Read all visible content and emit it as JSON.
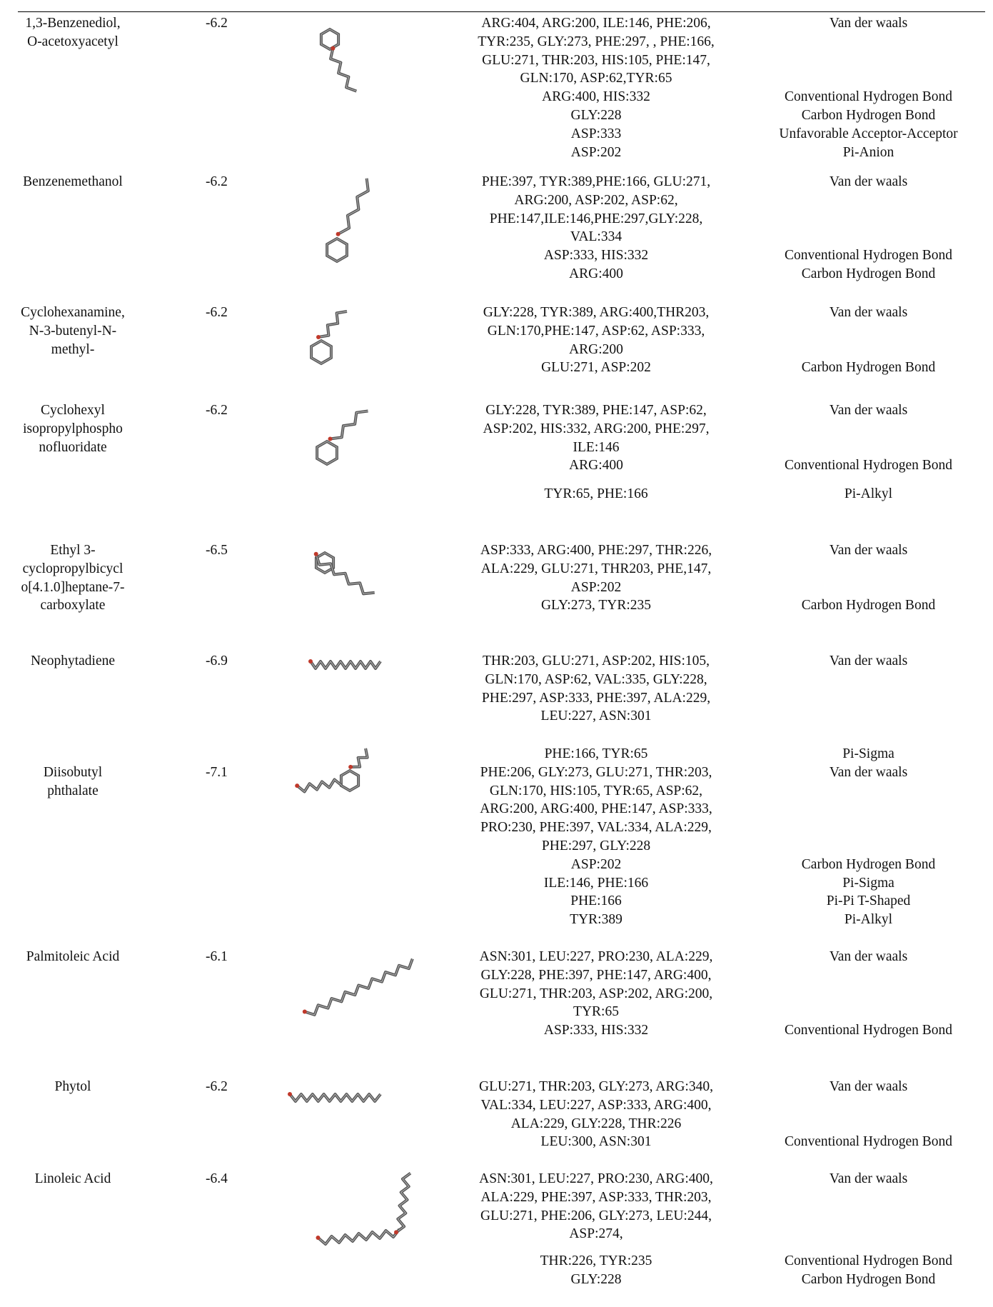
{
  "table": {
    "rows": [
      {
        "compound": [
          "1,3-Benzenediol,",
          "O-acetoxyacetyl"
        ],
        "energy": -6.2,
        "groups": [
          {
            "residues": [
              "ARG:404, ARG:200, ILE:146, PHE:206,",
              "TYR:235, GLY:273, PHE:297, , PHE:166,",
              "GLU:271, THR:203, HIS:105, PHE:147,",
              "GLN:170, ASP:62,TYR:65"
            ],
            "types": [
              "Van der waals"
            ]
          },
          {
            "residues": [
              "ARG:400, HIS:332",
              "GLY:228",
              "ASP:333",
              "ASP:202"
            ],
            "types": [
              "Conventional Hydrogen Bond",
              "Carbon Hydrogen Bond",
              "Unfavorable Acceptor-Acceptor",
              "Pi-Anion"
            ]
          }
        ]
      },
      {
        "compound": [
          "Benzenemethanol"
        ],
        "energy": -6.2,
        "groups": [
          {
            "residues": [
              "PHE:397, TYR:389,PHE:166, GLU:271,",
              "ARG:200, ASP:202, ASP:62,",
              "PHE:147,ILE:146,PHE:297,GLY:228,",
              "VAL:334"
            ],
            "types": [
              "Van der waals"
            ]
          },
          {
            "residues": [
              "ASP:333, HIS:332",
              "ARG:400"
            ],
            "types": [
              "Conventional Hydrogen Bond",
              "Carbon Hydrogen Bond"
            ]
          }
        ]
      },
      {
        "compound": [
          "Cyclohexanamine,",
          "N-3-butenyl-N-",
          "methyl-"
        ],
        "energy": -6.2,
        "groups": [
          {
            "residues": [
              "GLY:228, TYR:389, ARG:400,THR203,",
              "GLN:170,PHE:147, ASP:62, ASP:333,",
              "ARG:200"
            ],
            "types": [
              "Van der waals"
            ]
          },
          {
            "residues": [
              "GLU:271, ASP:202"
            ],
            "types": [
              "Carbon Hydrogen Bond"
            ]
          }
        ]
      },
      {
        "compound": [
          "Cyclohexyl",
          "isopropylphospho",
          "nofluoridate"
        ],
        "energy": -6.2,
        "groups": [
          {
            "residues": [
              "GLY:228, TYR:389, PHE:147, ASP:62,",
              "ASP:202, HIS:332, ARG:200, PHE:297,",
              "ILE:146"
            ],
            "types": [
              "Van der waals"
            ]
          },
          {
            "residues": [
              "ARG:400"
            ],
            "types": [
              "Conventional Hydrogen Bond"
            ]
          },
          {
            "residues": [
              "TYR:65, PHE:166"
            ],
            "types": [
              "Pi-Alkyl"
            ]
          }
        ]
      },
      {
        "compound": [
          "Ethyl 3-",
          "cyclopropylbicycl",
          "o[4.1.0]heptane-7-",
          "carboxylate"
        ],
        "energy": -6.5,
        "groups": [
          {
            "residues": [
              "ASP:333, ARG:400, PHE:297, THR:226,",
              "ALA:229, GLU:271, THR203, PHE,147,",
              "ASP:202"
            ],
            "types": [
              "Van der waals"
            ]
          },
          {
            "residues": [
              "GLY:273, TYR:235"
            ],
            "types": [
              "Carbon Hydrogen Bond"
            ]
          }
        ]
      },
      {
        "compound": [
          "Neophytadiene"
        ],
        "energy": -6.9,
        "groups": [
          {
            "residues": [
              "THR:203, GLU:271, ASP:202, HIS:105,",
              "GLN:170, ASP:62, VAL:335, GLY:228,",
              "PHE:297, ASP:333, PHE:397, ALA:229,",
              "LEU:227, ASN:301"
            ],
            "types": [
              "Van der waals"
            ]
          }
        ]
      },
      {
        "compound": [
          "Diisobutyl",
          "phthalate"
        ],
        "energy": -7.1,
        "groups": [
          {
            "residues": [
              "PHE:166, TYR:65"
            ],
            "types": [
              "Pi-Sigma"
            ]
          },
          {
            "residues": [
              "PHE:206, GLY:273, GLU:271, THR:203,",
              "GLN:170, HIS:105, TYR:65, ASP:62,",
              "ARG:200, ARG:400, PHE:147, ASP:333,",
              "PRO:230, PHE:397, VAL:334, ALA:229,",
              "PHE:297, GLY:228"
            ],
            "types": [
              "Van der waals"
            ]
          },
          {
            "residues": [
              "ASP:202",
              "ILE:146, PHE:166",
              "PHE:166",
              "TYR:389"
            ],
            "types": [
              "Carbon Hydrogen Bond",
              "Pi-Sigma",
              "Pi-Pi T-Shaped",
              "Pi-Alkyl"
            ]
          }
        ]
      },
      {
        "compound": [
          "Palmitoleic Acid"
        ],
        "energy": -6.1,
        "groups": [
          {
            "residues": [
              "ASN:301, LEU:227, PRO:230, ALA:229,",
              "GLY:228, PHE:397, PHE:147, ARG:400,",
              "GLU:271, THR:203, ASP:202, ARG:200,",
              "TYR:65"
            ],
            "types": [
              "Van der waals"
            ]
          },
          {
            "residues": [
              "ASP:333, HIS:332"
            ],
            "types": [
              "Conventional Hydrogen Bond"
            ]
          }
        ]
      },
      {
        "compound": [
          "Phytol"
        ],
        "energy": -6.2,
        "groups": [
          {
            "residues": [
              "GLU:271, THR:203, GLY:273, ARG:340,",
              "VAL:334, LEU:227, ASP:333, ARG:400,",
              "ALA:229, GLY:228, THR:226"
            ],
            "types": [
              "Van der waals"
            ]
          },
          {
            "residues": [
              "LEU:300, ASN:301"
            ],
            "types": [
              "Conventional Hydrogen Bond"
            ]
          }
        ]
      },
      {
        "compound": [
          "Linoleic Acid"
        ],
        "energy": -6.4,
        "groups": [
          {
            "residues": [
              "ASN:301, LEU:227, PRO:230, ARG:400,",
              "ALA:229, PHE:397, ASP:333, THR:203,",
              "GLU:271, PHE:206, GLY:273, LEU:244,",
              "ASP:274,"
            ],
            "types": [
              "Van der waals"
            ]
          },
          {
            "residues": [
              "THR:226, TYR:235",
              "GLY:228"
            ],
            "types": [
              "Conventional Hydrogen Bond",
              "Carbon Hydrogen Bond"
            ]
          }
        ]
      }
    ]
  }
}
